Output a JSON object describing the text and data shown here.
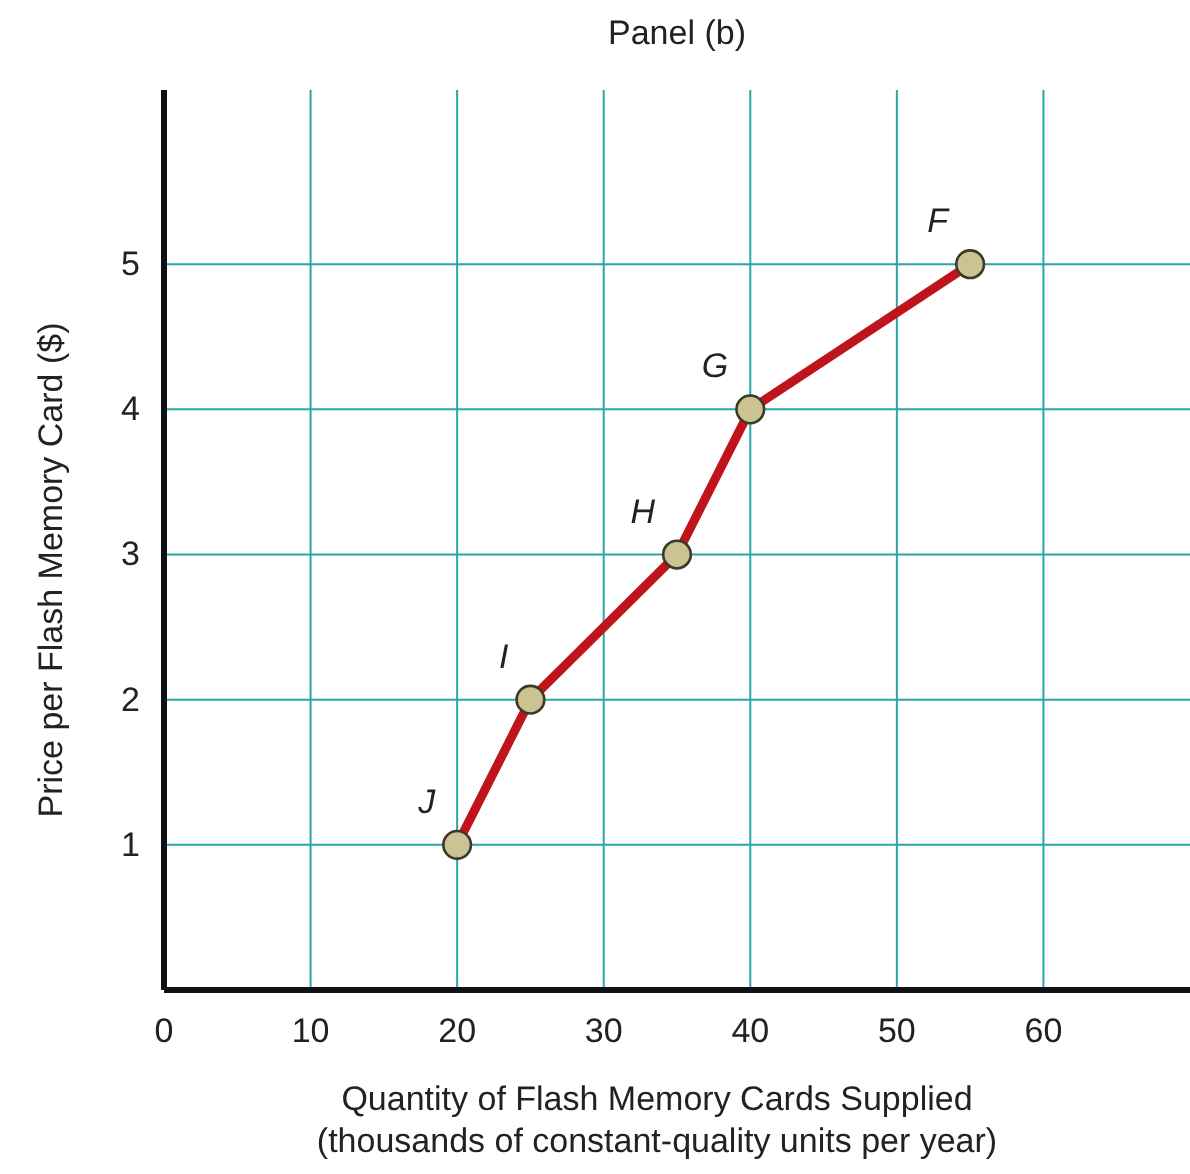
{
  "chart_data": {
    "type": "line",
    "title": "Panel (b)",
    "xlabel": "Quantity of Flash Memory Cards Supplied\n(thousands of constant-quality units per year)",
    "ylabel": "Price per Flash Memory Card ($)",
    "x": [
      20,
      25,
      35,
      40,
      55
    ],
    "series": [
      {
        "color": "#c0141c",
        "values": [
          1,
          2,
          3,
          4,
          5
        ]
      }
    ],
    "xlim": [
      0,
      70
    ],
    "ylim": [
      0,
      6.2
    ],
    "xticks": [
      0,
      10,
      20,
      30,
      40,
      50,
      60
    ],
    "yticks": [
      1,
      2,
      3,
      4,
      5
    ],
    "grid": true,
    "marker": "circle",
    "line_style": "solid",
    "annotations": [
      {
        "text": "J",
        "x": 20,
        "y": 1
      },
      {
        "text": "I",
        "x": 25,
        "y": 2
      },
      {
        "text": "H",
        "x": 35,
        "y": 3
      },
      {
        "text": "G",
        "x": 40,
        "y": 4
      },
      {
        "text": "F",
        "x": 55,
        "y": 5
      }
    ]
  }
}
